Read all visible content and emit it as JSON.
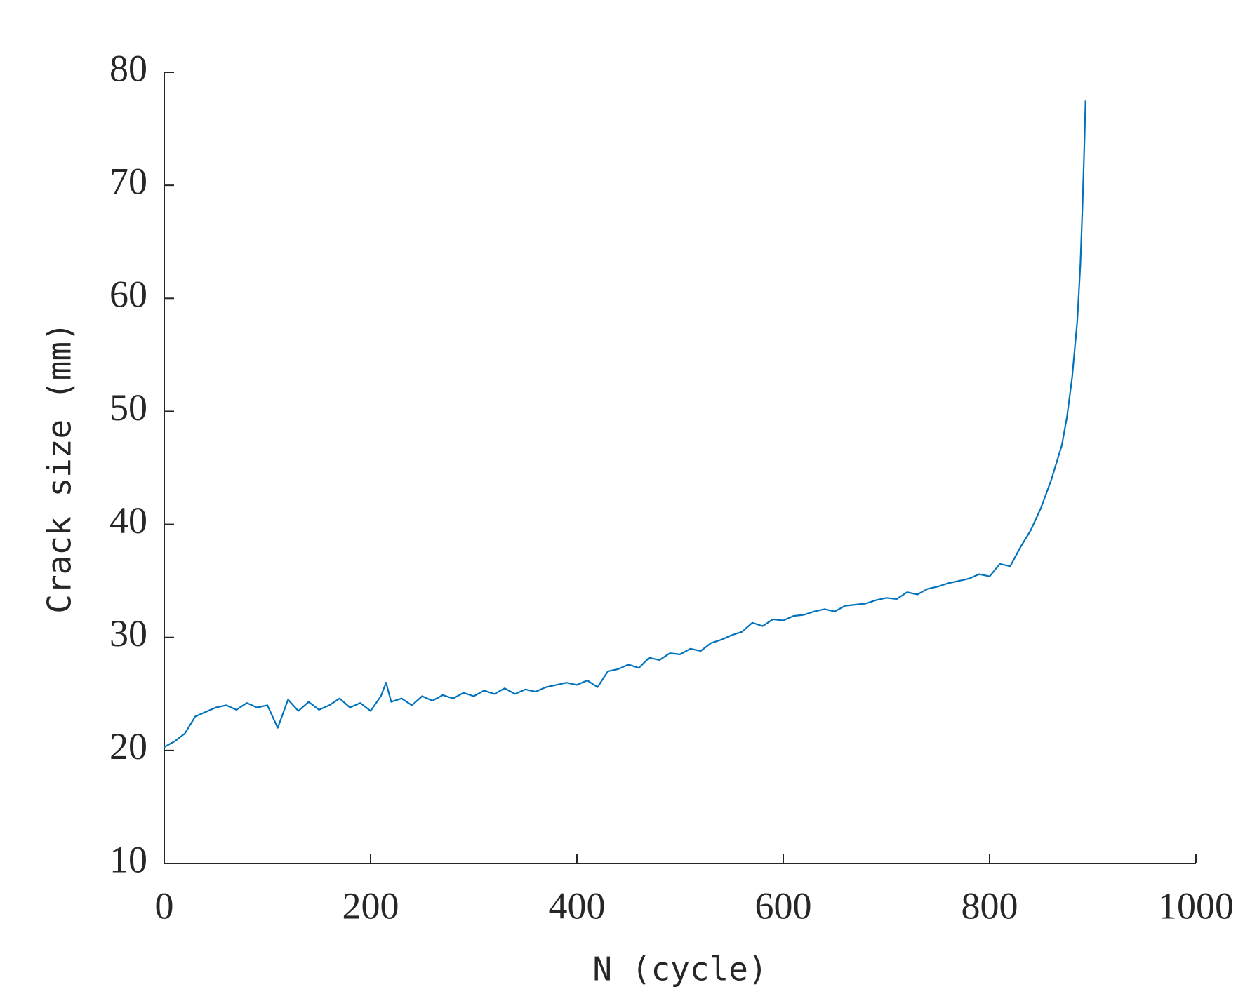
{
  "chart_data": {
    "type": "line",
    "x_label": "N (cycle)",
    "y_label": "Crack size (mm)",
    "xlim": [
      0,
      1000
    ],
    "xticks": [
      0,
      200,
      400,
      600,
      800,
      1000
    ],
    "ylim": [
      10,
      80
    ],
    "yticks": [
      10,
      20,
      30,
      40,
      50,
      60,
      70,
      80
    ],
    "x": [
      0,
      10,
      20,
      30,
      40,
      50,
      60,
      70,
      80,
      90,
      100,
      110,
      120,
      130,
      140,
      150,
      160,
      170,
      180,
      190,
      200,
      210,
      215,
      220,
      230,
      240,
      250,
      260,
      270,
      280,
      290,
      300,
      310,
      320,
      330,
      340,
      350,
      360,
      370,
      380,
      390,
      400,
      410,
      420,
      430,
      440,
      450,
      460,
      470,
      480,
      490,
      500,
      510,
      520,
      530,
      540,
      550,
      560,
      570,
      580,
      590,
      600,
      610,
      620,
      630,
      640,
      650,
      660,
      670,
      680,
      690,
      700,
      710,
      720,
      730,
      740,
      750,
      760,
      770,
      780,
      790,
      800,
      810,
      820,
      830,
      840,
      850,
      860,
      870,
      875,
      880,
      885,
      888,
      890,
      892,
      893
    ],
    "series": [
      {
        "name": "Crack size",
        "color": "#0072BD",
        "values": [
          20.3,
          20.8,
          21.5,
          23.0,
          23.4,
          23.8,
          24.0,
          23.6,
          24.2,
          23.8,
          24.0,
          22.0,
          24.5,
          23.5,
          24.3,
          23.6,
          24.0,
          24.6,
          23.8,
          24.2,
          23.5,
          24.8,
          26.0,
          24.3,
          24.6,
          24.0,
          24.8,
          24.4,
          24.9,
          24.6,
          25.1,
          24.8,
          25.3,
          25.0,
          25.5,
          25.0,
          25.4,
          25.2,
          25.6,
          25.8,
          26.0,
          25.8,
          26.2,
          25.6,
          27.0,
          27.2,
          27.6,
          27.3,
          28.2,
          28.0,
          28.6,
          28.5,
          29.0,
          28.8,
          29.5,
          29.8,
          30.2,
          30.5,
          31.3,
          31.0,
          31.6,
          31.5,
          31.9,
          32.0,
          32.3,
          32.5,
          32.3,
          32.8,
          32.9,
          33.0,
          33.3,
          33.5,
          33.4,
          34.0,
          33.8,
          34.3,
          34.5,
          34.8,
          35.0,
          35.2,
          35.6,
          35.4,
          36.5,
          36.3,
          38.0,
          39.5,
          41.5,
          44.0,
          47.0,
          49.5,
          53.0,
          58.0,
          63.0,
          68.0,
          74.0,
          77.5
        ]
      }
    ]
  }
}
